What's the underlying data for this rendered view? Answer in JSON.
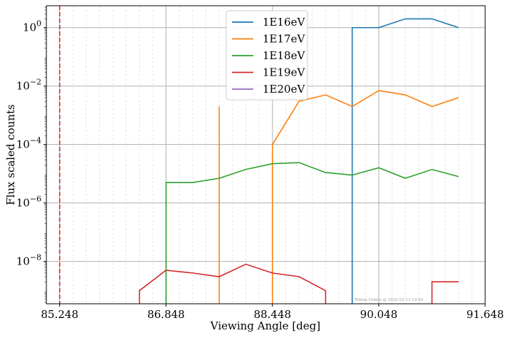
{
  "chart_data": {
    "type": "line",
    "xlabel": "Viewing Angle [deg]",
    "ylabel": "Flux scaled counts",
    "xlim": [
      85.048,
      91.648
    ],
    "ylim_log10": [
      -9.45,
      0.75
    ],
    "y_scale": "log",
    "x_major_ticks": [
      85.248,
      86.848,
      88.448,
      90.048,
      91.648
    ],
    "x_tick_labels": [
      "85.248",
      "86.848",
      "88.448",
      "90.048",
      "91.648"
    ],
    "x_minor_grid_step": 0.2,
    "y_major_ticks_exp": [
      -8,
      -6,
      -4,
      -2,
      0
    ],
    "y_tick_labels": [
      {
        "base": "10",
        "exp": "−8"
      },
      {
        "base": "10",
        "exp": "−6"
      },
      {
        "base": "10",
        "exp": "−4"
      },
      {
        "base": "10",
        "exp": "−2"
      },
      {
        "base": "10",
        "exp": "0"
      }
    ],
    "grid": true,
    "legend_position": "top-center",
    "vline": {
      "x": 85.248,
      "color": "#d62728",
      "style": "dashed"
    },
    "watermark": "Tobias Hobbs @ 2025-03-13 19:40",
    "series": [
      {
        "name": "1E16eV",
        "color": "#1f77b4",
        "points": [
          [
            89.648,
            null
          ],
          [
            89.648,
            1.0
          ],
          [
            90.048,
            1.0
          ],
          [
            90.448,
            2.0
          ],
          [
            90.848,
            2.0
          ],
          [
            91.248,
            1.0
          ]
        ]
      },
      {
        "name": "1E17eV",
        "color": "#ff7f0e",
        "points": [
          [
            87.648,
            null
          ],
          [
            87.648,
            0.002
          ],
          [
            87.648,
            null
          ],
          [
            88.448,
            null
          ],
          [
            88.448,
            0.0001
          ],
          [
            88.848,
            0.003
          ],
          [
            89.248,
            0.005
          ],
          [
            89.648,
            0.002
          ],
          [
            90.048,
            0.007
          ],
          [
            90.448,
            0.005
          ],
          [
            90.848,
            0.002
          ],
          [
            91.248,
            0.004
          ]
        ]
      },
      {
        "name": "1E18eV",
        "color": "#2ca02c",
        "points": [
          [
            86.848,
            null
          ],
          [
            86.848,
            5e-06
          ],
          [
            87.248,
            5e-06
          ],
          [
            87.648,
            7e-06
          ],
          [
            88.048,
            1.4e-05
          ],
          [
            88.448,
            2.2e-05
          ],
          [
            88.848,
            2.4e-05
          ],
          [
            89.248,
            1.1e-05
          ],
          [
            89.648,
            9e-06
          ],
          [
            90.048,
            1.6e-05
          ],
          [
            90.448,
            7e-06
          ],
          [
            90.848,
            1.4e-05
          ],
          [
            91.248,
            8e-06
          ]
        ]
      },
      {
        "name": "1E19eV",
        "color": "#d62728",
        "points": [
          [
            86.448,
            null
          ],
          [
            86.448,
            1e-09
          ],
          [
            86.848,
            5e-09
          ],
          [
            87.248,
            4e-09
          ],
          [
            87.648,
            3e-09
          ],
          [
            88.048,
            8e-09
          ],
          [
            88.448,
            4e-09
          ],
          [
            88.848,
            3e-09
          ],
          [
            89.248,
            1e-09
          ],
          [
            89.248,
            null
          ],
          [
            90.848,
            null
          ],
          [
            90.848,
            2e-09
          ],
          [
            91.248,
            2e-09
          ]
        ]
      },
      {
        "name": "1E20eV",
        "color": "#9467bd",
        "points": []
      }
    ]
  }
}
